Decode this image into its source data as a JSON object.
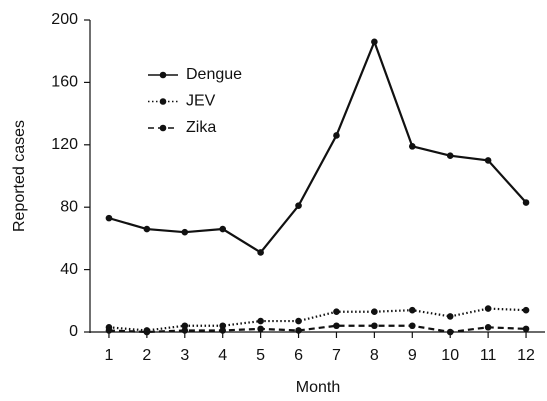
{
  "chart_data": {
    "type": "line",
    "x_label": "Month",
    "y_label": "Reported cases",
    "x": [
      1,
      2,
      3,
      4,
      5,
      6,
      7,
      8,
      9,
      10,
      11,
      12
    ],
    "xlim": [
      0.5,
      12.5
    ],
    "xticks": [
      1,
      2,
      3,
      4,
      5,
      6,
      7,
      8,
      9,
      10,
      11,
      12
    ],
    "ylim": [
      0,
      200
    ],
    "yticks": [
      0,
      40,
      80,
      120,
      160,
      200
    ],
    "grid": false,
    "legend": "upper left",
    "series": [
      {
        "name": "Dengue",
        "color": "#111111",
        "linestyle": "solid",
        "values": [
          73,
          66,
          64,
          66,
          51,
          81,
          126,
          186,
          119,
          113,
          110,
          83
        ]
      },
      {
        "name": "JEV",
        "color": "#111111",
        "linestyle": "dotted",
        "values": [
          3,
          1,
          4,
          4,
          7,
          7,
          13,
          13,
          14,
          10,
          15,
          14
        ]
      },
      {
        "name": "Zika",
        "color": "#111111",
        "linestyle": "dashed",
        "values": [
          1,
          0,
          1,
          1,
          2,
          1,
          4,
          4,
          4,
          0,
          3,
          2
        ]
      }
    ]
  }
}
